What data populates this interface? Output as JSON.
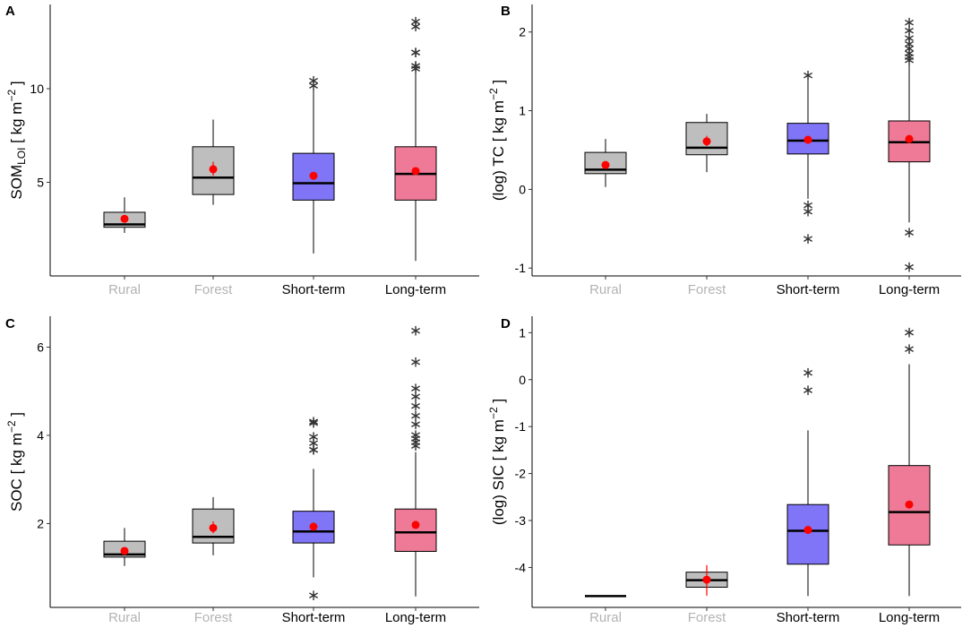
{
  "chart_data": [
    {
      "panel": "A",
      "type": "box",
      "categories": [
        "Rural",
        "Forest",
        "Short-term",
        "Long-term"
      ],
      "category_colors": [
        "#b3b3b3",
        "#b3b3b3",
        "#000000",
        "#000000"
      ],
      "box_fills": [
        "#bebebe",
        "#bebebe",
        "#7f75f6",
        "#ef7a97"
      ],
      "ylabel": {
        "main": "SOM",
        "sub": "LOI",
        "unit_open": " [ kg  m",
        "sup": "−2",
        "unit_close": " ]"
      },
      "ylim": [
        0,
        14.5
      ],
      "yticks": [
        5,
        10
      ],
      "ytick_labels": [
        "5",
        "10"
      ],
      "boxes": [
        {
          "min": 2.3,
          "q1": 2.6,
          "median": 2.75,
          "q3": 3.4,
          "max": 4.2,
          "mean": 3.05,
          "mean_err": [],
          "outliers": []
        },
        {
          "min": 3.8,
          "q1": 4.35,
          "median": 5.25,
          "q3": 6.9,
          "max": 8.35,
          "mean": 5.7,
          "mean_err": [
            5.35,
            6.1
          ],
          "outliers": []
        },
        {
          "min": 1.2,
          "q1": 4.05,
          "median": 4.95,
          "q3": 6.55,
          "max": 10.2,
          "mean": 5.35,
          "mean_err": [],
          "outliers": [
            10.3,
            10.55
          ]
        },
        {
          "min": 0.8,
          "q1": 4.05,
          "median": 5.45,
          "q3": 6.9,
          "max": 10.85,
          "mean": 5.6,
          "mean_err": [],
          "outliers": [
            11.2,
            11.35,
            11.35,
            12.05,
            12.05,
            13.45,
            13.7
          ]
        }
      ]
    },
    {
      "panel": "B",
      "type": "box",
      "categories": [
        "Rural",
        "Forest",
        "Short-term",
        "Long-term"
      ],
      "category_colors": [
        "#b3b3b3",
        "#b3b3b3",
        "#000000",
        "#000000"
      ],
      "box_fills": [
        "#bebebe",
        "#bebebe",
        "#7f75f6",
        "#ef7a97"
      ],
      "ylabel": {
        "main": "(log) TC",
        "sub": "",
        "unit_open": "  [ kg  m",
        "sup": "−2",
        "unit_close": " ]"
      },
      "ylim": [
        -1.1,
        2.35
      ],
      "yticks": [
        -1,
        0,
        1,
        2
      ],
      "ytick_labels": [
        "-1",
        "0",
        "1",
        "2"
      ],
      "boxes": [
        {
          "min": 0.03,
          "q1": 0.2,
          "median": 0.25,
          "q3": 0.47,
          "max": 0.64,
          "mean": 0.31,
          "mean_err": [
            0.26,
            0.36
          ],
          "outliers": []
        },
        {
          "min": 0.22,
          "q1": 0.44,
          "median": 0.53,
          "q3": 0.85,
          "max": 0.96,
          "mean": 0.61,
          "mean_err": [
            0.55,
            0.68
          ],
          "outliers": []
        },
        {
          "min": -0.12,
          "q1": 0.45,
          "median": 0.62,
          "q3": 0.84,
          "max": 1.4,
          "mean": 0.63,
          "mean_err": [],
          "outliers": [
            1.48,
            -0.17,
            -0.25,
            -0.6
          ]
        },
        {
          "min": -0.42,
          "q1": 0.35,
          "median": 0.6,
          "q3": 0.87,
          "max": 1.63,
          "mean": 0.64,
          "mean_err": [],
          "outliers": [
            1.67,
            1.71,
            1.76,
            1.82,
            1.88,
            1.95,
            2.05,
            2.15,
            -0.52,
            -0.96
          ]
        }
      ]
    },
    {
      "panel": "C",
      "type": "box",
      "categories": [
        "Rural",
        "Forest",
        "Short-term",
        "Long-term"
      ],
      "category_colors": [
        "#b3b3b3",
        "#b3b3b3",
        "#000000",
        "#000000"
      ],
      "box_fills": [
        "#bebebe",
        "#bebebe",
        "#7f75f6",
        "#ef7a97"
      ],
      "ylabel": {
        "main": "SOC",
        "sub": "",
        "unit_open": " [ kg  m",
        "sup": "−2",
        "unit_close": " ]"
      },
      "ylim": [
        0.1,
        6.7
      ],
      "yticks": [
        2,
        4,
        6
      ],
      "ytick_labels": [
        "2",
        "4",
        "6"
      ],
      "boxes": [
        {
          "min": 1.04,
          "q1": 1.24,
          "median": 1.3,
          "q3": 1.6,
          "max": 1.9,
          "mean": 1.38,
          "mean_err": [],
          "outliers": []
        },
        {
          "min": 1.28,
          "q1": 1.56,
          "median": 1.7,
          "q3": 2.33,
          "max": 2.6,
          "mean": 1.9,
          "mean_err": [
            1.78,
            2.05
          ],
          "outliers": []
        },
        {
          "min": 0.78,
          "q1": 1.56,
          "median": 1.82,
          "q3": 2.28,
          "max": 3.24,
          "mean": 1.93,
          "mean_err": [],
          "outliers": [
            3.72,
            3.72,
            3.88,
            4.02,
            4.33,
            4.36,
            0.42
          ]
        },
        {
          "min": 0.35,
          "q1": 1.37,
          "median": 1.8,
          "q3": 2.33,
          "max": 3.62,
          "mean": 1.97,
          "mean_err": [],
          "outliers": [
            3.82,
            3.9,
            3.98,
            4.06,
            4.3,
            4.5,
            4.72,
            4.93,
            5.12,
            5.72,
            6.43
          ]
        }
      ]
    },
    {
      "panel": "D",
      "type": "box",
      "categories": [
        "Rural",
        "Forest",
        "Short-term",
        "Long-term"
      ],
      "category_colors": [
        "#b3b3b3",
        "#b3b3b3",
        "#000000",
        "#000000"
      ],
      "box_fills": [
        "#bebebe",
        "#bebebe",
        "#7f75f6",
        "#ef7a97"
      ],
      "ylabel": {
        "main": "(log) SIC",
        "sub": "",
        "unit_open": "  [ kg  m",
        "sup": "−2",
        "unit_close": " ]"
      },
      "ylim": [
        -4.85,
        1.35
      ],
      "yticks": [
        -4,
        -3,
        -2,
        -1,
        0,
        1
      ],
      "ytick_labels": [
        "-4",
        "-3",
        "-2",
        "-1",
        "0",
        "1"
      ],
      "boxes": [
        {
          "min": -4.61,
          "q1": -4.61,
          "median": -4.61,
          "q3": -4.61,
          "max": -4.61,
          "mean": null,
          "mean_err": [],
          "outliers": []
        },
        {
          "min": -4.42,
          "q1": -4.42,
          "median": -4.27,
          "q3": -4.1,
          "max": -4.1,
          "mean": -4.26,
          "mean_err": [
            -4.6,
            -3.95
          ],
          "outliers": []
        },
        {
          "min": -4.61,
          "q1": -3.93,
          "median": -3.22,
          "q3": -2.66,
          "max": -1.08,
          "mean": -3.2,
          "mean_err": [],
          "outliers": [
            0.2,
            -0.18
          ]
        },
        {
          "min": -4.61,
          "q1": -3.52,
          "median": -2.82,
          "q3": -1.83,
          "max": 0.33,
          "mean": -2.66,
          "mean_err": [],
          "outliers": [
            1.05,
            0.7
          ]
        }
      ]
    }
  ]
}
